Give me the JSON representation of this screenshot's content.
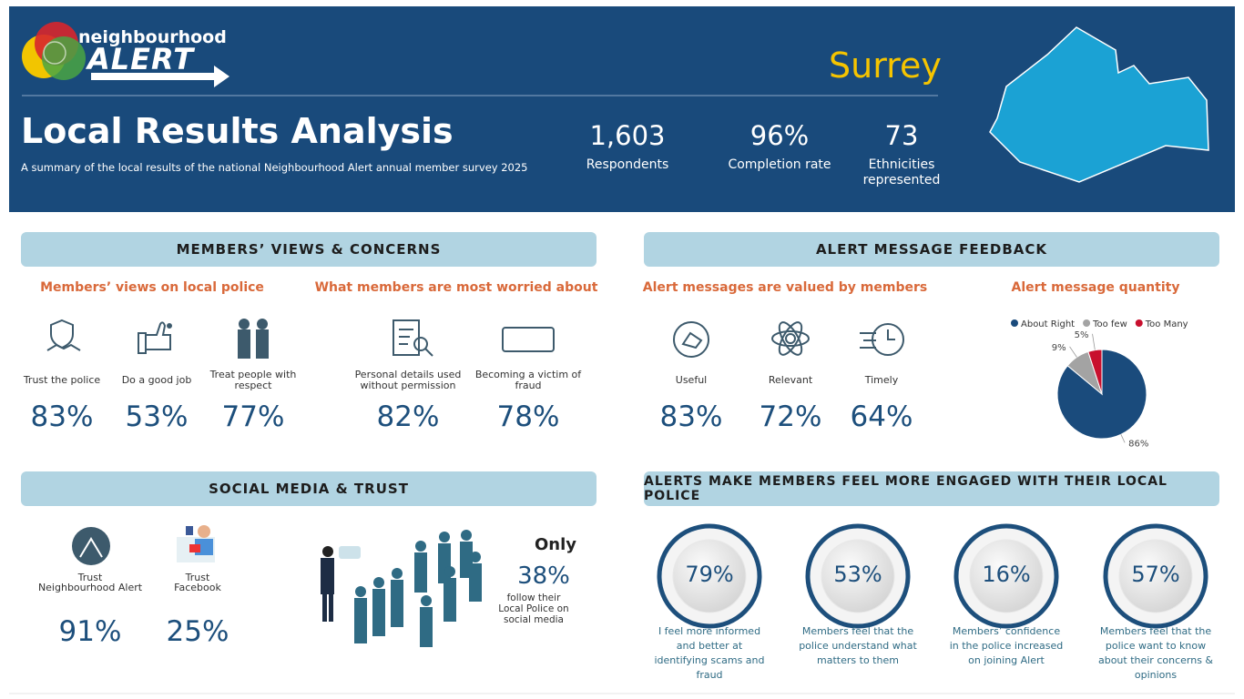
{
  "header": {
    "logo_top": "neighbourhood",
    "logo_main": "ALERT",
    "region": "Surrey",
    "title": "Local Results Analysis",
    "subtitle": "A summary of the local results of the national Neighbourhood Alert annual member survey 2025",
    "stats": [
      {
        "value": "1,603",
        "label": "Respondents"
      },
      {
        "value": "96%",
        "label": "Completion rate"
      },
      {
        "value": "73",
        "label": "Ethnicities represented"
      }
    ]
  },
  "members_views": {
    "heading": "MEMBERS’ VIEWS & CONCERNS",
    "police": {
      "heading": "Members’ views on local police",
      "items": [
        {
          "label": "Trust the police",
          "value": "83%"
        },
        {
          "label": "Do a good job",
          "value": "53%"
        },
        {
          "label": "Treat people with respect",
          "value": "77%"
        }
      ]
    },
    "worries": {
      "heading": "What members are most worried about",
      "items": [
        {
          "label": "Personal details used without permission",
          "value": "82%"
        },
        {
          "label": "Becoming a victim of fraud",
          "value": "78%"
        }
      ]
    }
  },
  "alert_feedback": {
    "heading": "ALERT MESSAGE FEEDBACK",
    "valued": {
      "heading": "Alert messages are valued by members",
      "items": [
        {
          "label": "Useful",
          "value": "83%"
        },
        {
          "label": "Relevant",
          "value": "72%"
        },
        {
          "label": "Timely",
          "value": "64%"
        }
      ]
    }
  },
  "chart_data": {
    "type": "pie",
    "title": "Alert message quantity",
    "categories": [
      "About Right",
      "Too few",
      "Too Many"
    ],
    "values": [
      86,
      9,
      5
    ],
    "value_labels": [
      "86%",
      "9%",
      "5%"
    ],
    "colors": [
      "#1a4b7c",
      "#a3a3a3",
      "#c8102e"
    ]
  },
  "social": {
    "heading": "SOCIAL MEDIA & TRUST",
    "items": [
      {
        "label": [
          "Trust",
          "Neighbourhood Alert"
        ],
        "value": "91%"
      },
      {
        "label": [
          "Trust",
          "Facebook"
        ],
        "value": "25%"
      }
    ],
    "follow": {
      "lead": "Only",
      "value": "38%",
      "label": "follow their Local Police on social media"
    }
  },
  "engagement": {
    "heading": "ALERTS MAKE MEMBERS FEEL MORE ENGAGED WITH THEIR LOCAL POLICE",
    "items": [
      {
        "value": "79%",
        "label": "I feel more informed and better at identifying scams and fraud"
      },
      {
        "value": "53%",
        "label": "Members feel that the police understand what matters to them"
      },
      {
        "value": "16%",
        "label": "Members’ confidence in the police increased on joining Alert"
      },
      {
        "value": "57%",
        "label": "Members feel that the police want to know about their concerns & opinions"
      }
    ]
  }
}
